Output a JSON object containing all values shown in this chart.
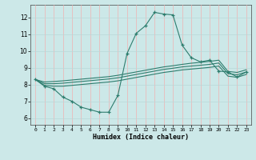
{
  "title": "",
  "xlabel": "Humidex (Indice chaleur)",
  "bg_color": "#cce8e8",
  "line_color": "#2e7d6e",
  "grid_minor_color": "#b8d8d8",
  "grid_major_color": "#f0b0b0",
  "x_ticks": [
    0,
    1,
    2,
    3,
    4,
    5,
    6,
    7,
    8,
    9,
    10,
    11,
    12,
    13,
    14,
    15,
    16,
    17,
    18,
    19,
    20,
    21,
    22,
    23
  ],
  "y_ticks": [
    6,
    7,
    8,
    9,
    10,
    11,
    12
  ],
  "xlim": [
    -0.5,
    23.5
  ],
  "ylim": [
    5.6,
    12.75
  ],
  "main_x": [
    0,
    1,
    2,
    3,
    4,
    5,
    6,
    7,
    8,
    9,
    10,
    11,
    12,
    13,
    14,
    15,
    16,
    17,
    18,
    19,
    20,
    21,
    22,
    23
  ],
  "main_y": [
    8.3,
    7.9,
    7.75,
    7.25,
    7.0,
    6.65,
    6.5,
    6.35,
    6.35,
    7.35,
    9.85,
    11.05,
    11.5,
    12.3,
    12.2,
    12.15,
    10.35,
    9.6,
    9.35,
    9.45,
    8.8,
    8.75,
    8.45,
    8.75
  ],
  "upper_y": [
    8.3,
    8.15,
    8.18,
    8.22,
    8.27,
    8.32,
    8.37,
    8.42,
    8.47,
    8.55,
    8.65,
    8.75,
    8.85,
    8.95,
    9.05,
    9.12,
    9.2,
    9.27,
    9.32,
    9.38,
    9.45,
    8.78,
    8.72,
    8.88
  ],
  "mid_y": [
    8.3,
    8.05,
    8.05,
    8.08,
    8.13,
    8.18,
    8.23,
    8.28,
    8.33,
    8.4,
    8.5,
    8.6,
    8.7,
    8.8,
    8.9,
    8.97,
    9.05,
    9.1,
    9.15,
    9.2,
    9.28,
    8.65,
    8.58,
    8.75
  ],
  "lower_y": [
    8.3,
    7.95,
    7.9,
    7.9,
    7.95,
    8.0,
    8.05,
    8.1,
    8.15,
    8.22,
    8.32,
    8.42,
    8.52,
    8.62,
    8.72,
    8.79,
    8.87,
    8.92,
    8.97,
    9.02,
    9.1,
    8.5,
    8.43,
    8.6
  ]
}
